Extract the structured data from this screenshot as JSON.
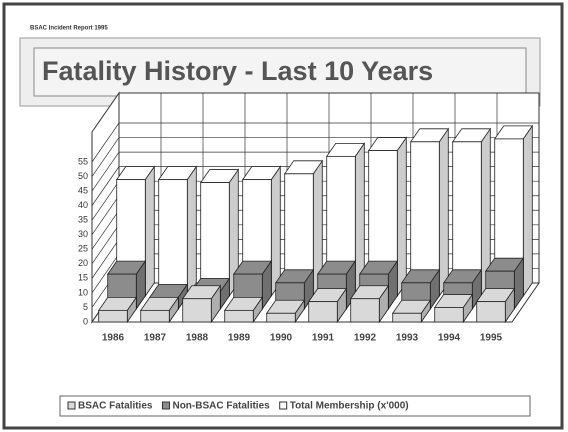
{
  "header": "BSAC Incident Report 1995",
  "chart_data": {
    "type": "bar3d",
    "title": "Fatality History - Last 10 Years",
    "categories": [
      "1986",
      "1987",
      "1988",
      "1989",
      "1990",
      "1991",
      "1992",
      "1993",
      "1994",
      "1995"
    ],
    "series": [
      {
        "name": "BSAC Fatalities",
        "color": "#d9d9d9",
        "values": [
          4,
          4,
          8,
          4,
          3,
          7,
          8,
          3,
          5,
          7
        ]
      },
      {
        "name": "Non-BSAC Fatalities",
        "color": "#8c8c8c",
        "values": [
          12,
          4,
          6,
          12,
          9,
          12,
          12,
          9,
          9,
          13
        ]
      },
      {
        "name": "Total Membership (x'000)",
        "color": "#ffffff",
        "values": [
          40,
          40,
          39,
          40,
          42,
          48,
          50,
          53,
          53,
          54
        ]
      }
    ],
    "ylim": [
      0,
      55
    ],
    "yticks": [
      0,
      5,
      10,
      15,
      20,
      25,
      30,
      35,
      40,
      45,
      50,
      55
    ],
    "grid": true,
    "legend": "bottom"
  }
}
